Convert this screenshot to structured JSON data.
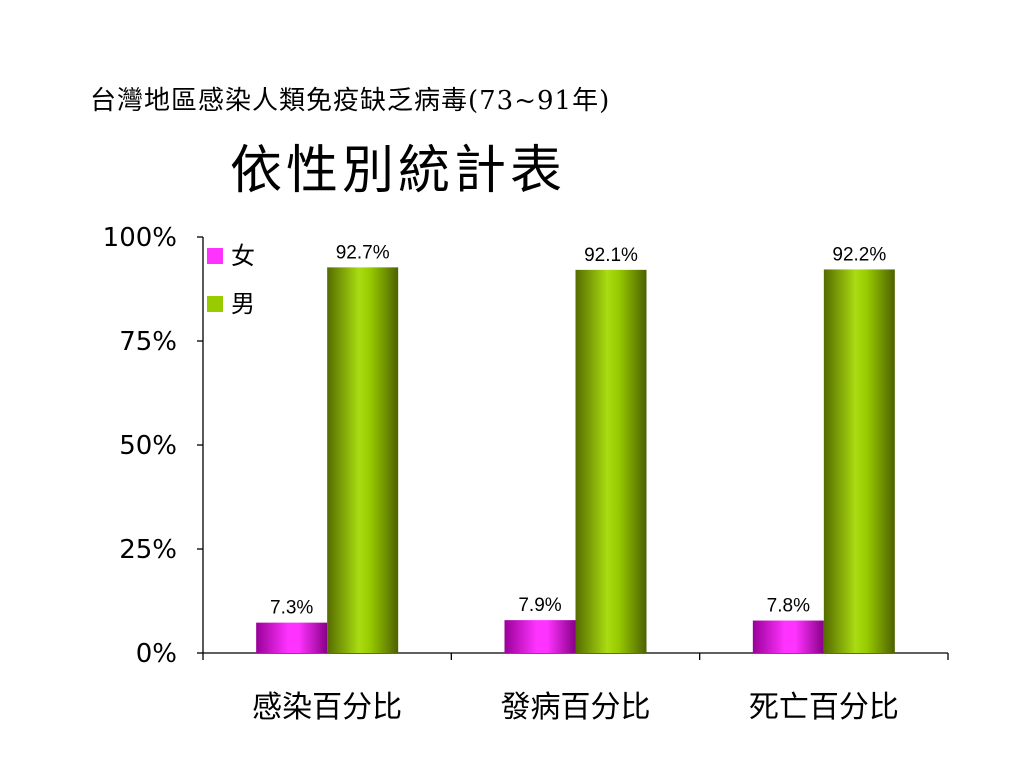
{
  "slide": {
    "title_line1": "台灣地區感染人類免疫缺乏病毒(73~91年)",
    "title_line2": "依性別統計表"
  },
  "chart_data": {
    "type": "bar",
    "title": "台灣地區感染人類免疫缺乏病毒(73~91年) 依性別統計表",
    "categories": [
      "感染百分比",
      "發病百分比",
      "死亡百分比"
    ],
    "series": [
      {
        "name": "女",
        "values": [
          7.3,
          7.9,
          7.8
        ],
        "labels": [
          "7.3%",
          "7.9%",
          "7.8%"
        ],
        "color": "#ff33ff"
      },
      {
        "name": "男",
        "values": [
          92.7,
          92.1,
          92.2
        ],
        "labels": [
          "92.7%",
          "92.1%",
          "92.2%"
        ],
        "color": "#99cc00"
      }
    ],
    "yticks": [
      "0%",
      "25%",
      "50%",
      "75%",
      "100%"
    ],
    "ylim": [
      0,
      100
    ],
    "xlabel": "",
    "ylabel": "",
    "legend_position": "top-left",
    "grid": false
  }
}
